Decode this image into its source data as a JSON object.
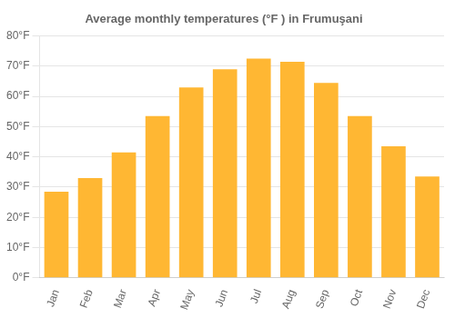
{
  "chart_data": {
    "type": "bar",
    "title": "Average monthly temperatures (°F ) in Frumuşani",
    "categories": [
      "Jan",
      "Feb",
      "Mar",
      "Apr",
      "May",
      "Jun",
      "Jul",
      "Aug",
      "Sep",
      "Oct",
      "Nov",
      "Dec"
    ],
    "values": [
      28.5,
      33.0,
      41.5,
      53.5,
      63.0,
      69.0,
      72.5,
      71.5,
      64.5,
      53.5,
      43.5,
      33.5
    ],
    "color": "#FFB733",
    "ylim": [
      0,
      80
    ],
    "yticks": [
      {
        "value": 0,
        "label": "0°F"
      },
      {
        "value": 10,
        "label": "10°F"
      },
      {
        "value": 20,
        "label": "20°F"
      },
      {
        "value": 30,
        "label": "30°F"
      },
      {
        "value": 40,
        "label": "40°F"
      },
      {
        "value": 50,
        "label": "50°F"
      },
      {
        "value": 60,
        "label": "60°F"
      },
      {
        "value": 70,
        "label": "70°F"
      },
      {
        "value": 80,
        "label": "80°F"
      }
    ],
    "grid": true
  }
}
